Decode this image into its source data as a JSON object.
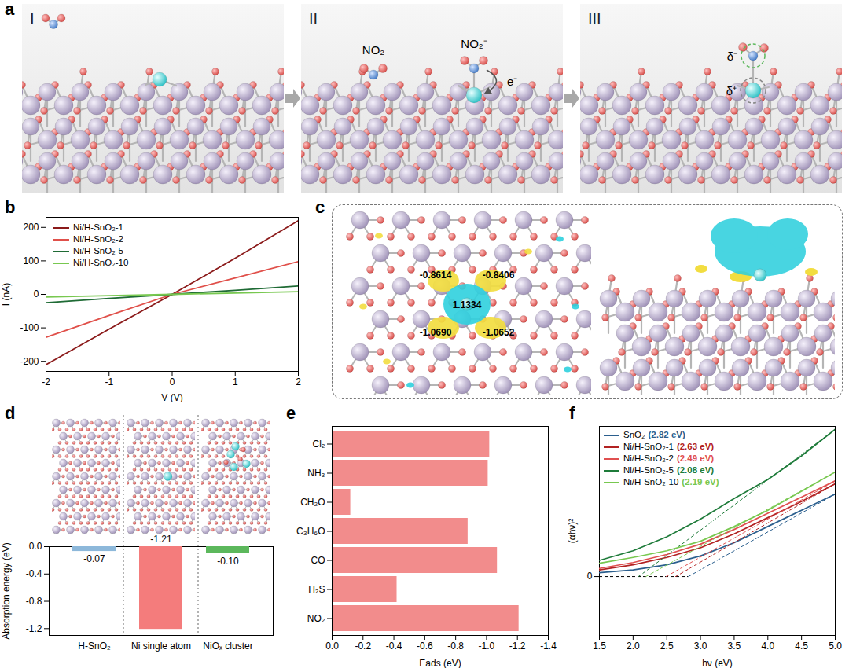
{
  "chart_data": [
    {
      "panel": "b",
      "type": "line",
      "xlabel": "V (V)",
      "ylabel": "I (nA)",
      "x": [
        -2,
        -1,
        0,
        1,
        2
      ],
      "series": [
        {
          "name": "Ni/H-SnO₂-1",
          "color": "#8b1a1a",
          "values": [
            -210,
            -104,
            0,
            108,
            220
          ]
        },
        {
          "name": "Ni/H-SnO₂-2",
          "color": "#e0504a",
          "values": [
            -128,
            -63,
            0,
            49,
            98
          ]
        },
        {
          "name": "Ni/H-SnO₂-5",
          "color": "#1f6b35",
          "values": [
            -25,
            -12,
            0,
            12,
            25
          ]
        },
        {
          "name": "Ni/H-SnO₂-10",
          "color": "#78c850",
          "values": [
            -8,
            -4,
            0,
            4,
            8
          ]
        }
      ],
      "xlim": [
        -2,
        2
      ],
      "xticks": [
        -2,
        -1,
        0,
        1,
        2
      ],
      "ylim": [
        -230,
        230
      ],
      "yticks": [
        -200,
        -100,
        0,
        100,
        200
      ],
      "legend": "top-left"
    },
    {
      "panel": "d",
      "type": "bar",
      "ylabel": "Absorption energy (eV)",
      "categories": [
        "H-SnO₂",
        "Ni single atom",
        "NiOₓ cluster"
      ],
      "values": [
        -0.07,
        -1.21,
        -0.1
      ],
      "value_labels": [
        "-0.07",
        "-1.21",
        "-0.10"
      ],
      "colors": [
        "#8db8da",
        "#f47c7c",
        "#5cb85c"
      ],
      "ylim": [
        -1.3,
        0
      ],
      "yticks": [
        -1.2,
        -0.8,
        -0.4,
        {
          "value": 0,
          "label": "0.0"
        }
      ],
      "data_labels": true
    },
    {
      "panel": "e",
      "type": "bar",
      "orientation": "horizontal",
      "xlabel": "Eads (eV)",
      "categories": [
        "Cl₂",
        "NH₃",
        "CH₂O",
        "C₃H₆O",
        "CO",
        "H₂S",
        "NO₂"
      ],
      "values": [
        -1.02,
        -1.01,
        -0.12,
        -0.88,
        -1.07,
        -0.42,
        -1.21
      ],
      "color": "#f28c8c",
      "xlim": [
        0,
        -1.4
      ],
      "xticks": [
        {
          "value": 0,
          "label": "0.0"
        },
        -0.2,
        -0.4,
        -0.6,
        -0.8,
        {
          "value": -1,
          "label": "-1.0"
        },
        -1.2,
        -1.4
      ]
    },
    {
      "panel": "f",
      "type": "line",
      "xlabel": "hν (eV)",
      "ylabel": "(αhν)²",
      "x": [
        1.5,
        2.0,
        2.5,
        3.0,
        3.5,
        4.0,
        4.5,
        5.0
      ],
      "series": [
        {
          "name": "SnO₂",
          "color": "#2b5f8e",
          "values": [
            0.26,
            0.45,
            0.8,
            1.4,
            2.3,
            3.4,
            4.5,
            5.6
          ],
          "band_gap": 2.82,
          "band_gap_label": "(2.82 eV)"
        },
        {
          "name": "Ni/H-SnO₂-1",
          "color": "#b22222",
          "values": [
            0.45,
            0.8,
            1.3,
            1.95,
            2.9,
            4.0,
            5.1,
            6.3
          ],
          "band_gap": 2.63,
          "band_gap_label": "(2.63 eV)"
        },
        {
          "name": "Ni/H-SnO₂-2",
          "color": "#e05050",
          "values": [
            0.55,
            0.95,
            1.5,
            2.2,
            3.2,
            4.3,
            5.4,
            6.5
          ],
          "band_gap": 2.49,
          "band_gap_label": "(2.49 eV)"
        },
        {
          "name": "Ni/H-SnO₂-5",
          "color": "#1e7b3a",
          "values": [
            1.1,
            1.75,
            2.7,
            3.9,
            5.3,
            6.6,
            8.2,
            10.0
          ],
          "band_gap": 2.08,
          "band_gap_label": "(2.08 eV)"
        },
        {
          "name": "Ni/H-SnO₂-10",
          "color": "#78c850",
          "values": [
            0.9,
            1.3,
            1.75,
            2.4,
            3.4,
            4.5,
            5.8,
            7.1
          ],
          "band_gap": 2.19,
          "band_gap_label": "(2.19 eV)"
        }
      ],
      "xlim": [
        1.5,
        5
      ],
      "xticks": [
        1.5,
        {
          "value": 2,
          "label": "2.0"
        },
        2.5,
        {
          "value": 3,
          "label": "3.0"
        },
        3.5,
        {
          "value": 4,
          "label": "4.0"
        },
        4.5,
        {
          "value": 5,
          "label": "5.0"
        }
      ],
      "ylim": [
        -4,
        10.2
      ],
      "yticks": [
        0
      ],
      "legend": "top-left"
    }
  ],
  "diagrams": [
    {
      "panel": "a",
      "steps": [
        {
          "label": "I",
          "texts": []
        },
        {
          "label": "II",
          "texts": [
            "NO₂",
            "NO₂⁻",
            "e⁻"
          ]
        },
        {
          "label": "III",
          "texts": [
            "δ⁻",
            "δ⁺"
          ]
        }
      ]
    },
    {
      "panel": "c",
      "charge_labels": [
        "-0.8614",
        "-0.8406",
        "1.1334",
        "-1.0690",
        "-1.0652"
      ]
    }
  ]
}
